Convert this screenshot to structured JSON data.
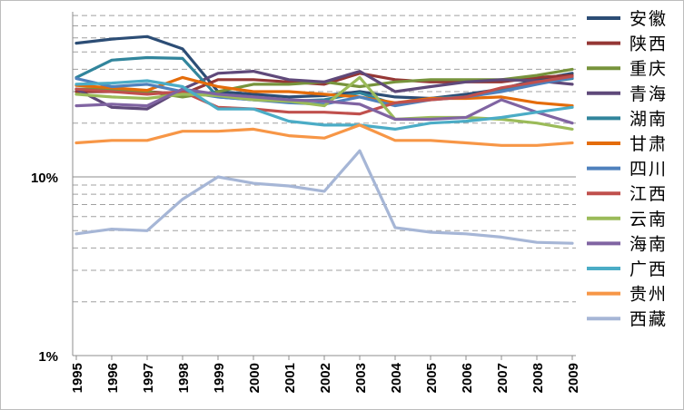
{
  "chart_data": {
    "type": "line",
    "title": "",
    "xlabel": "",
    "ylabel": "",
    "y_scale": "log",
    "ylim": [
      1,
      60
    ],
    "y_ticks": [
      {
        "value": 1,
        "label": "1%"
      },
      {
        "value": 10,
        "label": "10%"
      }
    ],
    "grid": "horizontal dashed minor gridlines",
    "legend_position": "right",
    "x": [
      "1995",
      "1996",
      "1997",
      "1998",
      "1999",
      "2000",
      "2001",
      "2002",
      "2003",
      "2004",
      "2005",
      "2006",
      "2007",
      "2008",
      "2009"
    ],
    "series": [
      {
        "name": "安徽",
        "color": "#2c4d75",
        "values": [
          56,
          59,
          61,
          52,
          30,
          29,
          28,
          28.5,
          30,
          28,
          27.5,
          29,
          31,
          35,
          38
        ]
      },
      {
        "name": "陕西",
        "color": "#953735",
        "values": [
          30,
          30,
          30,
          29,
          35,
          35,
          34,
          33,
          38,
          35,
          34,
          34,
          34,
          36,
          37
        ]
      },
      {
        "name": "重庆",
        "color": "#77933c",
        "values": [
          31,
          31,
          30,
          28,
          30,
          33,
          33,
          34,
          32,
          34,
          35,
          35,
          35,
          37,
          40
        ]
      },
      {
        "name": "青海",
        "color": "#5f497a",
        "values": [
          31,
          24.5,
          24,
          31,
          38,
          39,
          35,
          34,
          39,
          30,
          32,
          34,
          35,
          34.5,
          33
        ]
      },
      {
        "name": "湖南",
        "color": "#31859c",
        "values": [
          36,
          45,
          46.5,
          46,
          28,
          27,
          26.5,
          27,
          29.5,
          25.5,
          27.5,
          28,
          31,
          33.5,
          35.5
        ]
      },
      {
        "name": "甘肃",
        "color": "#e46c0a",
        "values": [
          32.5,
          31.5,
          30.5,
          36,
          32,
          30,
          30,
          29,
          28,
          26,
          27.5,
          27.5,
          28,
          26,
          25
        ]
      },
      {
        "name": "四川",
        "color": "#4f81bd",
        "values": [
          35.5,
          32,
          33,
          30,
          28,
          27,
          26,
          25.5,
          28,
          25,
          27,
          28,
          30,
          33,
          36
        ]
      },
      {
        "name": "江西",
        "color": "#c0504d",
        "values": [
          31,
          30,
          29,
          30,
          24.5,
          24,
          23,
          23,
          22.5,
          26,
          27,
          28,
          31.5,
          34,
          36.5
        ]
      },
      {
        "name": "云南",
        "color": "#9bbb59",
        "values": [
          29,
          28,
          27.5,
          29,
          28.5,
          27,
          26.5,
          25,
          36,
          21,
          21.5,
          21.5,
          21,
          20,
          18.5
        ]
      },
      {
        "name": "海南",
        "color": "#8064a2",
        "values": [
          25,
          25.5,
          25,
          31,
          29,
          28,
          27,
          26.5,
          25.5,
          21,
          21,
          21.5,
          27,
          23,
          20
        ]
      },
      {
        "name": "广西",
        "color": "#4bacc6",
        "values": [
          33,
          33.5,
          34.5,
          32,
          24,
          24,
          20.5,
          19.5,
          19.5,
          18.5,
          20,
          20.5,
          21.5,
          23,
          24.5
        ]
      },
      {
        "name": "贵州",
        "color": "#f79646",
        "values": [
          15.5,
          16,
          16,
          18,
          18,
          18.5,
          17,
          16.5,
          19.5,
          16,
          16,
          15.5,
          15,
          15,
          15.5
        ]
      },
      {
        "name": "西藏",
        "color": "#a6b6d6",
        "values": [
          4.8,
          5.1,
          5,
          7.5,
          10,
          9.2,
          8.9,
          8.3,
          14,
          5.2,
          4.9,
          4.8,
          4.6,
          4.3,
          4.25
        ]
      }
    ]
  }
}
